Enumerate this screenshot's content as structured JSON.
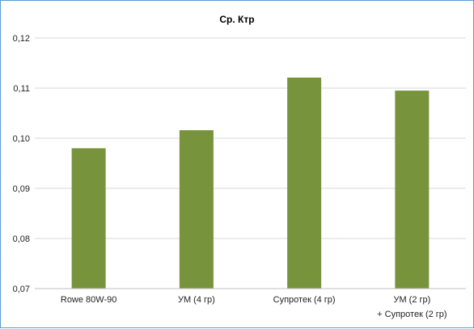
{
  "chart_data": {
    "type": "bar",
    "title": "Ср. Ктр",
    "xlabel": "",
    "ylabel": "",
    "categories": [
      [
        "Rowe 80W-90"
      ],
      [
        "УМ (4 гр)"
      ],
      [
        "Супротек (4 гр)"
      ],
      [
        "УМ (2 гр)",
        "+ Супротек (2 гр)"
      ]
    ],
    "values": [
      0.098,
      0.1016,
      0.1121,
      0.1095
    ],
    "ylim": [
      0.07,
      0.12
    ],
    "yticks": [
      "0,12",
      "0,11",
      "0,10",
      "0,09",
      "0,08",
      "0,07"
    ],
    "ytick_values": [
      0.12,
      0.11,
      0.1,
      0.09,
      0.08,
      0.07
    ],
    "grid": true,
    "colors": {
      "bar": "#77933c",
      "grid": "#d9d9d9",
      "axis": "#bfbfbf",
      "frame": "#5b9bd5"
    }
  }
}
